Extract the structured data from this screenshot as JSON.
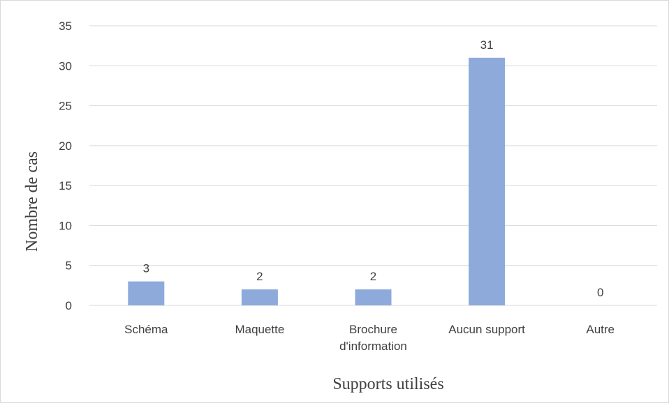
{
  "chart_data": {
    "type": "bar",
    "title": "",
    "xlabel": "Supports utilisés",
    "ylabel": "Nombre de cas",
    "categories": [
      [
        "Schéma"
      ],
      [
        "Maquette"
      ],
      [
        "Brochure",
        "d'information"
      ],
      [
        "Aucun support"
      ],
      [
        "Autre"
      ]
    ],
    "values": [
      3,
      2,
      2,
      31,
      0
    ],
    "data_labels": [
      "3",
      "2",
      "2",
      "31",
      "0"
    ],
    "yticks": [
      "0",
      "5",
      "10",
      "15",
      "20",
      "25",
      "30",
      "35"
    ],
    "ylim": [
      0,
      35
    ],
    "grid": true,
    "legend": false,
    "bar_color": "#8eaadb",
    "grid_color": "#d9d9d9",
    "text_color": "#404040"
  }
}
